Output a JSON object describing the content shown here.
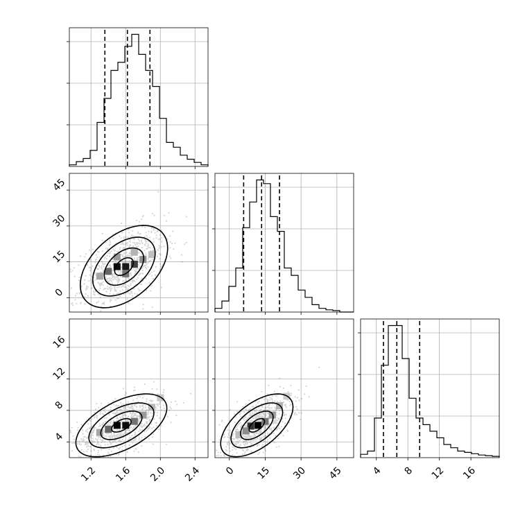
{
  "chart_data": {
    "type": "corner",
    "grid": true,
    "parameters": [
      {
        "ticks": [
          1.2,
          1.6,
          2.0,
          2.4
        ],
        "tick_labels": [
          "1.2",
          "1.6",
          "2.0",
          "2.4"
        ],
        "range": [
          0.95,
          2.55
        ]
      },
      {
        "ticks": [
          0,
          15,
          30,
          45
        ],
        "tick_labels": [
          "0",
          "15",
          "30",
          "45"
        ],
        "range": [
          -6,
          52
        ]
      },
      {
        "ticks": [
          4,
          8,
          12,
          16
        ],
        "tick_labels": [
          "4",
          "8",
          "12",
          "16"
        ],
        "range": [
          2.0,
          19.6
        ]
      }
    ],
    "histograms": [
      {
        "parameter": 0,
        "bin_edges": [
          0.95,
          1.03,
          1.11,
          1.19,
          1.27,
          1.35,
          1.43,
          1.51,
          1.59,
          1.67,
          1.75,
          1.83,
          1.91,
          1.99,
          2.07,
          2.15,
          2.23,
          2.31,
          2.39,
          2.47,
          2.55
        ],
        "counts": [
          2,
          6,
          10,
          20,
          55,
          85,
          120,
          130,
          150,
          165,
          140,
          120,
          100,
          60,
          30,
          24,
          14,
          9,
          5,
          2
        ],
        "quantiles": [
          1.36,
          1.62,
          1.88
        ]
      },
      {
        "parameter": 1,
        "bin_edges": [
          -6,
          -3.1,
          -0.2,
          2.7,
          5.6,
          8.5,
          11.4,
          14.3,
          17.2,
          20.1,
          23.0,
          25.9,
          28.8,
          31.7,
          34.6,
          37.5,
          40.4,
          43.3,
          46.2,
          49.1,
          52.0
        ],
        "counts": [
          5,
          15,
          35,
          60,
          115,
          150,
          180,
          175,
          130,
          110,
          60,
          50,
          30,
          20,
          10,
          5,
          3,
          2,
          0,
          0
        ],
        "quantiles": [
          6,
          13.5,
          21
        ]
      },
      {
        "parameter": 2,
        "bin_edges": [
          2.0,
          2.88,
          3.76,
          4.64,
          5.52,
          6.4,
          7.28,
          8.16,
          9.04,
          9.92,
          10.8,
          11.68,
          12.56,
          13.44,
          14.32,
          15.2,
          16.08,
          16.96,
          17.84,
          18.72,
          19.6
        ],
        "counts": [
          5,
          10,
          60,
          140,
          200,
          200,
          150,
          90,
          60,
          50,
          40,
          30,
          20,
          15,
          10,
          8,
          6,
          4,
          3,
          2
        ],
        "quantiles": [
          4.9,
          6.6,
          9.5
        ]
      }
    ],
    "joint": [
      {
        "x_param": 0,
        "y_param": 1,
        "center": [
          1.58,
          13.0
        ],
        "sd": [
          0.24,
          8.2
        ],
        "rho": 0.45,
        "contour_scale": [
          0.45,
          0.95,
          1.5,
          2.1
        ],
        "density_cells": [
          {
            "x": 1.5,
            "y": 13,
            "level": 0.95
          },
          {
            "x": 1.6,
            "y": 13,
            "level": 0.9
          },
          {
            "x": 1.7,
            "y": 14,
            "level": 0.75
          },
          {
            "x": 1.4,
            "y": 11,
            "level": 0.6
          },
          {
            "x": 1.6,
            "y": 10,
            "level": 0.55
          },
          {
            "x": 1.8,
            "y": 16,
            "level": 0.45
          },
          {
            "x": 1.5,
            "y": 17,
            "level": 0.4
          },
          {
            "x": 1.3,
            "y": 9,
            "level": 0.35
          },
          {
            "x": 1.7,
            "y": 19,
            "level": 0.3
          },
          {
            "x": 1.9,
            "y": 18,
            "level": 0.25
          }
        ]
      },
      {
        "x_param": 0,
        "y_param": 2,
        "center": [
          1.55,
          6.1
        ],
        "sd": [
          0.25,
          1.9
        ],
        "rho": 0.55,
        "contour_scale": [
          0.45,
          0.95,
          1.5,
          2.1
        ],
        "density_cells": [
          {
            "x": 1.5,
            "y": 6.1,
            "level": 1.0
          },
          {
            "x": 1.6,
            "y": 6.1,
            "level": 0.95
          },
          {
            "x": 1.4,
            "y": 5.6,
            "level": 0.6
          },
          {
            "x": 1.7,
            "y": 6.6,
            "level": 0.55
          },
          {
            "x": 1.8,
            "y": 7.4,
            "level": 0.4
          },
          {
            "x": 1.3,
            "y": 5.2,
            "level": 0.35
          },
          {
            "x": 1.9,
            "y": 8.4,
            "level": 0.28
          },
          {
            "x": 2.0,
            "y": 9.6,
            "level": 0.22
          }
        ]
      },
      {
        "x_param": 1,
        "y_param": 2,
        "center": [
          11.5,
          6.1
        ],
        "sd": [
          7.2,
          1.9
        ],
        "rho": 0.58,
        "contour_scale": [
          0.45,
          0.95,
          1.5,
          2.1
        ],
        "density_cells": [
          {
            "x": 12,
            "y": 6.1,
            "level": 1.0
          },
          {
            "x": 9,
            "y": 6.0,
            "level": 0.8
          },
          {
            "x": 15,
            "y": 6.6,
            "level": 0.55
          },
          {
            "x": 7,
            "y": 5.4,
            "level": 0.45
          },
          {
            "x": 18,
            "y": 7.4,
            "level": 0.4
          },
          {
            "x": 21,
            "y": 8.6,
            "level": 0.3
          },
          {
            "x": 4,
            "y": 4.9,
            "level": 0.25
          },
          {
            "x": 24,
            "y": 9.8,
            "level": 0.2
          }
        ]
      }
    ]
  }
}
